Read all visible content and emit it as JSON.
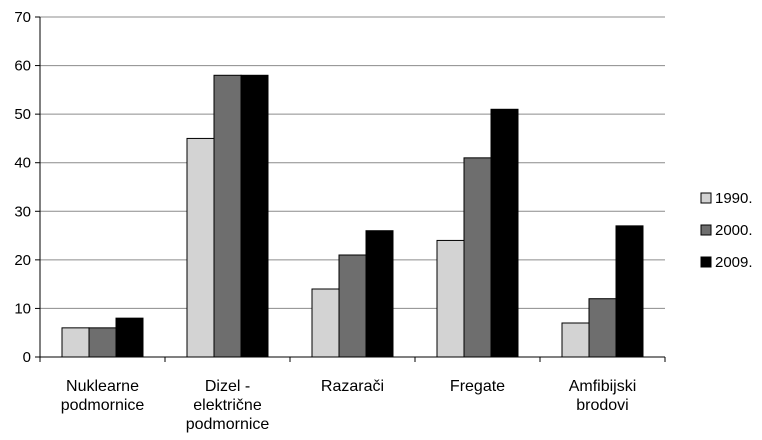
{
  "chart_data": {
    "type": "bar",
    "categories": [
      [
        "Nuklearne",
        "podmornice"
      ],
      [
        "Dizel -",
        "električne",
        "podmornice"
      ],
      [
        "Razarači"
      ],
      [
        "Fregate"
      ],
      [
        "Amfibijski",
        "brodovi"
      ]
    ],
    "series": [
      {
        "name": "1990.",
        "values": [
          6,
          45,
          14,
          24,
          7
        ],
        "color": "#d3d3d3"
      },
      {
        "name": "2000.",
        "values": [
          6,
          58,
          21,
          41,
          12
        ],
        "color": "#6e6e6e"
      },
      {
        "name": "2009.",
        "values": [
          8,
          58,
          26,
          51,
          27
        ],
        "color": "#000000"
      }
    ],
    "ylim": [
      0,
      70
    ],
    "yticks": [
      0,
      10,
      20,
      30,
      40,
      50,
      60,
      70
    ],
    "grid": true,
    "legend": "right",
    "title": "",
    "xlabel": "",
    "ylabel": ""
  }
}
